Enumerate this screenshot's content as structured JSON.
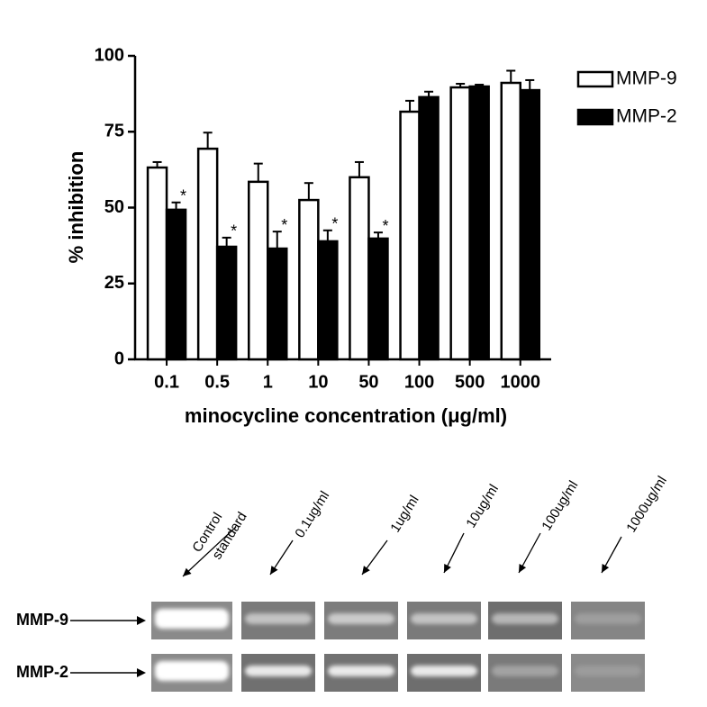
{
  "chart_data": {
    "type": "bar",
    "ylabel": "% inhibition",
    "xlabel": "minocycline concentration (μg/ml)",
    "categories": [
      "0.1",
      "0.5",
      "1",
      "10",
      "50",
      "100",
      "500",
      "1000"
    ],
    "series": [
      {
        "name": "MMP-9",
        "color": "#ffffff",
        "values": [
          63.2,
          69.4,
          58.5,
          52.5,
          60,
          81.6,
          89.6,
          91.1
        ],
        "errors": [
          1.8,
          5.3,
          6,
          5.6,
          5,
          3.6,
          1.2,
          4
        ],
        "annotations": [
          null,
          null,
          null,
          null,
          null,
          null,
          null,
          null
        ]
      },
      {
        "name": "MMP-2",
        "color": "#000000",
        "values": [
          49.3,
          37.1,
          36.5,
          38.9,
          39.8,
          86.4,
          89.9,
          88.7
        ],
        "errors": [
          2.4,
          3,
          5.6,
          3.6,
          2,
          1.8,
          0.6,
          3.3
        ],
        "annotations": [
          "*",
          "*",
          "*",
          "*",
          "*",
          null,
          null,
          null
        ]
      }
    ],
    "ylim": [
      0,
      100
    ],
    "yticks": [
      0,
      25,
      50,
      75,
      100
    ],
    "grid": false,
    "legend": "top-right"
  },
  "gel": {
    "lanes": [
      {
        "lines": [
          "Control",
          "standard"
        ]
      },
      {
        "lines": [
          "0.1ug/ml"
        ]
      },
      {
        "lines": [
          "1ug/ml"
        ]
      },
      {
        "lines": [
          "10ug/ml"
        ]
      },
      {
        "lines": [
          "100ug/ml"
        ]
      },
      {
        "lines": [
          "1000ug/ml"
        ]
      }
    ],
    "rows": [
      "MMP-9",
      "MMP-2"
    ]
  }
}
